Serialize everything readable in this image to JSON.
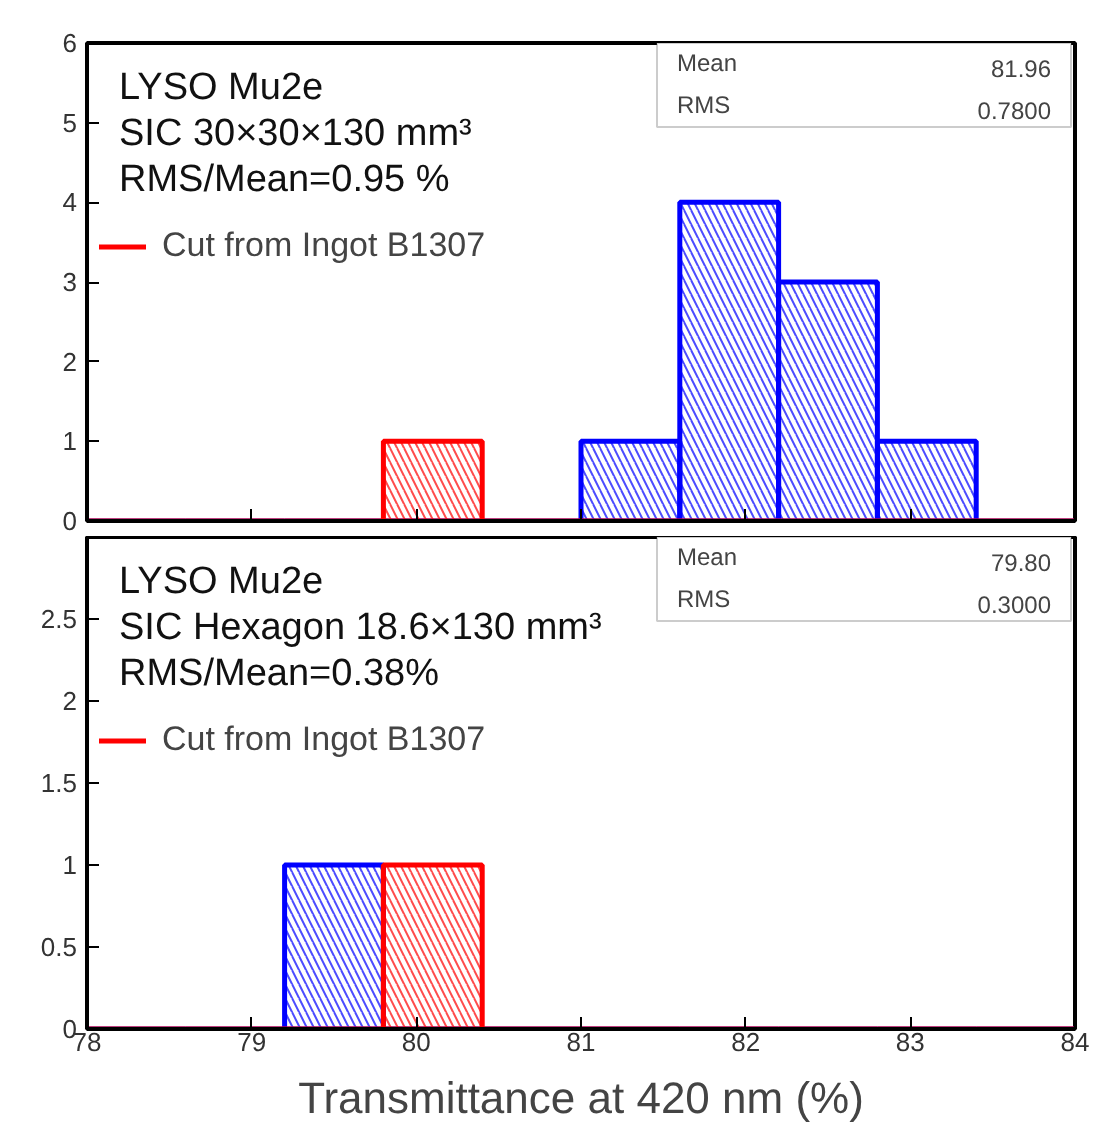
{
  "chart_data": [
    {
      "type": "histogram",
      "bins": [
        78,
        78.6,
        79.2,
        79.8,
        80.4,
        81,
        81.6,
        82.2,
        82.8,
        83.4,
        84
      ],
      "xlim": [
        78,
        84
      ],
      "xticks": [
        78,
        79,
        80,
        81,
        82,
        83,
        84
      ],
      "ylim": [
        0,
        6
      ],
      "yticks": [
        0,
        1,
        2,
        3,
        4,
        5,
        6
      ],
      "tick_labels": "y",
      "legend": "top left",
      "annotations": [
        "LYSO Mu2e",
        "SIC  30×30×130 mm³",
        "RMS/Mean=0.95 %",
        "Mean",
        "81.96",
        "RMS",
        "0.7800"
      ],
      "series": [
        {
          "color": "#0000ff",
          "values": [
            0,
            0,
            0,
            0,
            0,
            1,
            4,
            3,
            1,
            0
          ]
        },
        {
          "name": "Cut from Ingot B1307",
          "color": "#ff0000",
          "values": [
            0,
            0,
            0,
            1,
            0,
            0,
            0,
            0,
            0,
            0
          ]
        }
      ]
    },
    {
      "type": "histogram",
      "bins": [
        78,
        78.6,
        79.2,
        79.8,
        80.4,
        81,
        81.6,
        82.2,
        82.8,
        83.4,
        84
      ],
      "xlim": [
        78,
        84
      ],
      "xticks": [
        78,
        79,
        80,
        81,
        82,
        83,
        84
      ],
      "ylim": [
        0,
        3
      ],
      "yticks": [
        0,
        0.5,
        1,
        1.5,
        2,
        2.5
      ],
      "xlabel": "Transmittance at 420 nm (%)",
      "legend": "top left",
      "annotations": [
        "LYSO Mu2e",
        "SIC  Hexagon 18.6×130 mm³",
        "RMS/Mean=0.38%",
        "Mean",
        "79.80",
        "RMS",
        "0.3000"
      ],
      "series": [
        {
          "color": "#0000ff",
          "values": [
            0,
            0,
            1,
            0,
            0,
            0,
            0,
            0,
            0,
            0
          ]
        },
        {
          "name": "Cut from Ingot B1307",
          "color": "#ff0000",
          "values": [
            0,
            0,
            0,
            1,
            0,
            0,
            0,
            0,
            0,
            0
          ]
        }
      ]
    }
  ]
}
